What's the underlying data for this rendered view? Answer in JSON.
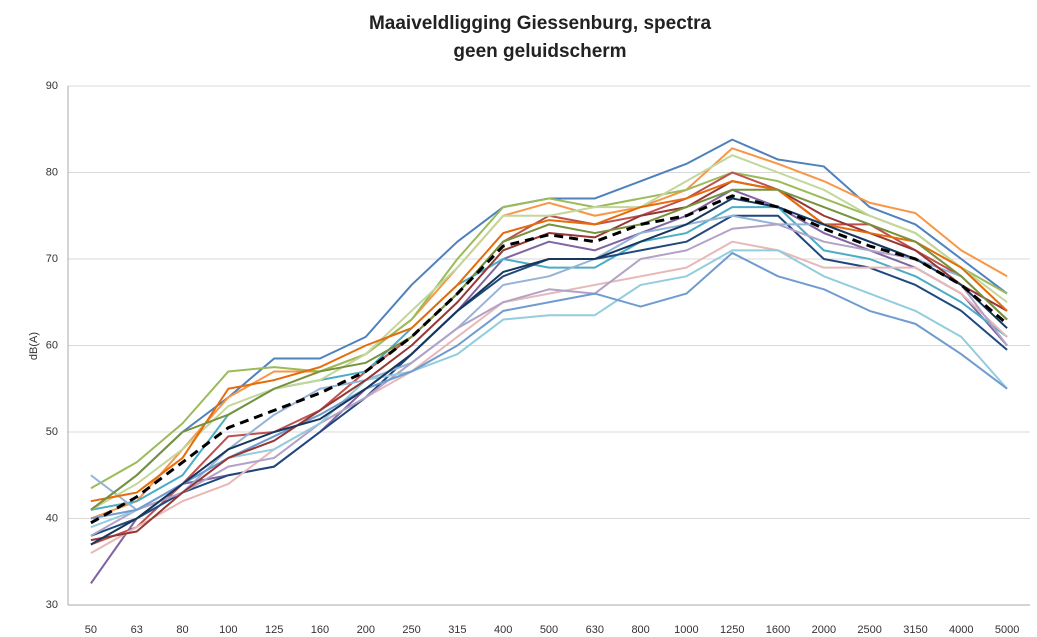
{
  "chart_data": {
    "type": "line",
    "title": [
      "Maaiveldligging Giessenburg, spectra",
      "geen geluidscherm"
    ],
    "y_label": "dB(A)",
    "categories": [
      "50",
      "63",
      "80",
      "100",
      "125",
      "160",
      "200",
      "250",
      "315",
      "400",
      "500",
      "630",
      "800",
      "1000",
      "1250",
      "1600",
      "2000",
      "2500",
      "3150",
      "4000",
      "5000"
    ],
    "ylim": [
      30,
      90
    ],
    "yticks": [
      30,
      40,
      50,
      60,
      70,
      80,
      90
    ],
    "grid": true,
    "series": [
      {
        "color": "#4f81bd",
        "values": [
          41,
          45,
          50,
          54,
          58.5,
          58.5,
          61,
          67,
          72,
          76,
          77,
          77,
          79,
          81,
          83.8,
          81.5,
          80.7,
          76,
          74,
          70,
          66
        ]
      },
      {
        "color": "#f79646",
        "values": [
          40,
          42,
          48,
          54,
          57,
          57,
          59,
          63,
          69,
          75,
          76.5,
          75,
          76,
          78,
          82.8,
          81,
          79,
          76.5,
          75.3,
          71,
          68
        ]
      },
      {
        "color": "#9bbb59",
        "values": [
          43.5,
          46.5,
          51,
          57,
          57.5,
          57,
          59,
          63,
          70,
          76,
          77,
          76,
          77,
          78,
          80,
          79,
          77,
          75,
          73,
          69,
          66
        ]
      },
      {
        "color": "#c0504d",
        "values": [
          37,
          39,
          44,
          49.5,
          50,
          52.5,
          57,
          61,
          66,
          72,
          75,
          74,
          75,
          77,
          80,
          78,
          74,
          74,
          71,
          68,
          63
        ]
      },
      {
        "color": "#8064a2",
        "values": [
          32.5,
          40,
          44,
          45,
          46,
          50,
          55,
          59,
          64,
          70,
          72,
          71,
          73,
          75,
          78,
          76,
          73,
          71,
          69,
          66,
          60
        ]
      },
      {
        "color": "#4bacc6",
        "values": [
          41,
          42,
          45,
          52,
          55,
          56,
          57,
          62,
          67,
          70,
          69,
          69,
          72,
          73,
          76,
          76,
          71,
          70,
          68,
          65,
          61
        ]
      },
      {
        "color": "#1f497d",
        "values": [
          38,
          40,
          43,
          45,
          46,
          50,
          54,
          59,
          64,
          68,
          70,
          70,
          71,
          72,
          75,
          75,
          70,
          69,
          67,
          64,
          59.5
        ]
      },
      {
        "color": "#95b3d7",
        "values": [
          45,
          41,
          43,
          48,
          52,
          55,
          56,
          58,
          62,
          67,
          68,
          70,
          73,
          74,
          75,
          74,
          74,
          72,
          70,
          68,
          63
        ]
      },
      {
        "color": "#e6b9b8",
        "values": [
          36,
          39,
          42,
          44,
          48,
          51,
          54,
          57,
          61,
          65,
          66,
          67,
          68,
          69,
          72,
          71,
          69,
          69,
          69,
          66,
          61
        ]
      },
      {
        "color": "#b3a2c7",
        "values": [
          38,
          41,
          43,
          46,
          47,
          51,
          54,
          58,
          62,
          65,
          66.5,
          66,
          70,
          71,
          73.5,
          74,
          72,
          71,
          70,
          67,
          60
        ]
      },
      {
        "color": "#93cddd",
        "values": [
          39,
          41,
          44,
          47,
          48,
          51,
          56,
          57,
          59,
          63,
          63.5,
          63.5,
          67,
          68,
          71,
          71,
          68,
          66,
          64,
          61,
          55
        ]
      },
      {
        "color": "#6f9bd1",
        "values": [
          40,
          41,
          44,
          47,
          49.5,
          52,
          55,
          57,
          60,
          64,
          65,
          66,
          64.5,
          66,
          70.7,
          68,
          66.5,
          64,
          62.5,
          59,
          55
        ]
      },
      {
        "color": "#953735",
        "values": [
          37.5,
          38.5,
          43,
          47,
          49,
          52.5,
          56,
          60,
          65,
          71,
          73,
          72.5,
          75,
          76,
          79,
          78,
          75,
          73,
          71,
          67,
          64
        ]
      },
      {
        "color": "#c3d69b",
        "values": [
          41,
          44,
          48,
          53,
          55,
          56,
          59,
          64,
          69,
          75,
          75,
          76,
          76,
          79,
          82,
          80,
          78,
          75,
          73,
          69,
          65
        ]
      },
      {
        "color": "#e46c0a",
        "values": [
          42,
          43,
          47,
          55,
          56,
          57.5,
          60,
          62,
          67,
          73,
          74.5,
          74,
          76,
          77,
          79,
          78,
          74,
          73,
          72,
          69,
          64
        ]
      },
      {
        "color": "#76923c",
        "values": [
          41,
          45,
          50,
          52,
          55,
          57,
          58,
          61,
          66,
          72,
          74,
          73,
          74,
          76,
          78,
          78,
          76,
          74,
          72,
          68,
          63
        ]
      },
      {
        "color": "#17375e",
        "values": [
          37,
          40,
          44,
          48,
          50,
          51.5,
          55,
          59,
          64,
          68.5,
          70,
          70,
          72,
          74,
          77,
          76,
          74,
          72,
          70,
          67,
          62
        ]
      },
      {
        "color": "#000000",
        "dash": true,
        "values": [
          39.5,
          42.5,
          46.5,
          50.5,
          52.5,
          54.5,
          57,
          61,
          66,
          71.5,
          72.8,
          72,
          74,
          75,
          77.3,
          76,
          73.5,
          71.5,
          70,
          67,
          62.5
        ]
      }
    ]
  }
}
